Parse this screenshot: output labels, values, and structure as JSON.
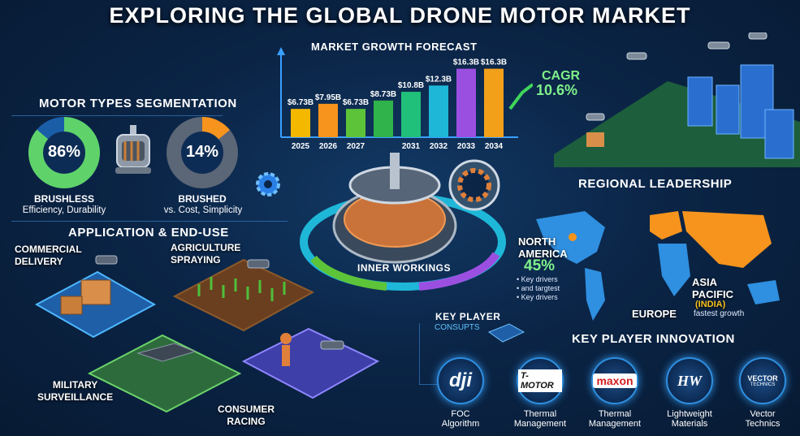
{
  "title": "EXPLORING THE GLOBAL DRONE MOTOR MARKET",
  "chart": {
    "title": "MARKET GROWTH FORECAST",
    "cagr_label": "CAGR",
    "cagr_value": "10.6%"
  },
  "chart_data": {
    "type": "bar",
    "title": "MARKET GROWTH FORECAST",
    "categories": [
      "2025",
      "2026",
      "2027",
      "",
      "2031",
      "2032",
      "2033",
      "2034"
    ],
    "value_labels": [
      "$6.73B",
      "$7.95B",
      "$6.73B",
      "$8.73B",
      "$10.8B",
      "$12.3B",
      "$16.3B",
      "$16.3B"
    ],
    "values": [
      6.73,
      7.95,
      6.73,
      8.73,
      10.8,
      12.3,
      16.3,
      16.3
    ],
    "colors": [
      "#f5b800",
      "#f7941d",
      "#5dc43a",
      "#2fb34a",
      "#21c07a",
      "#1fb7d8",
      "#9b4fe0",
      "#f2a01a"
    ]
  },
  "motor_types": {
    "title": "MOTOR TYPES SEGMENTATION",
    "brushless": {
      "value": "86%",
      "fraction": 0.86,
      "name": "BRUSHLESS",
      "desc": "Efficiency, Durability"
    },
    "brushed": {
      "value": "14%",
      "fraction": 0.14,
      "name": "BRUSHED",
      "desc": "vs. Cost, Simplicity"
    }
  },
  "applications": {
    "title": "APPLICATION & END-USE",
    "commercial": "COMMERCIAL\nDELIVERY",
    "agriculture": "AGRICULTURE\nSPRAYING",
    "military": "MILITARY\nSURVEILLANCE",
    "consumer": "CONSUMER\nRACING"
  },
  "inner_workings": "INNER WORKINGS",
  "regional": {
    "title": "REGIONAL LEADERSHIP",
    "north_america": "NORTH\nAMERICA",
    "na_pct": "45%",
    "na_notes": [
      "• Key drivers",
      "• and targtest",
      "• Key drivers"
    ],
    "europe": "EUROPE",
    "asia": "ASIA\nPACIFIC",
    "india": "(INDIA)",
    "asia_note": "fastest growth"
  },
  "key_player": {
    "label": "KEY PLAYER",
    "sub": "CONSUPTS",
    "innovation_title": "KEY PLAYER INNOVATION",
    "logos": [
      {
        "name": "dji",
        "text": "dji",
        "caption": "FOC\nAlgorithm"
      },
      {
        "name": "t-motor",
        "text": "T-MOTOR",
        "caption": "Thermal\nManagement"
      },
      {
        "name": "maxon",
        "text": "maxon",
        "caption": "Thermal\nManagement"
      },
      {
        "name": "hw",
        "text": "HW",
        "caption": "Lightweight\nMaterials"
      },
      {
        "name": "vector",
        "text": "VECTOR",
        "subtext": "TECHNICS",
        "caption": "Vector\nTechnics"
      }
    ]
  },
  "colors": {
    "accent_green": "#7ff08a",
    "accent_blue": "#2f8fe0",
    "donut_green": "#5fd36a",
    "donut_orange": "#f7941d"
  }
}
